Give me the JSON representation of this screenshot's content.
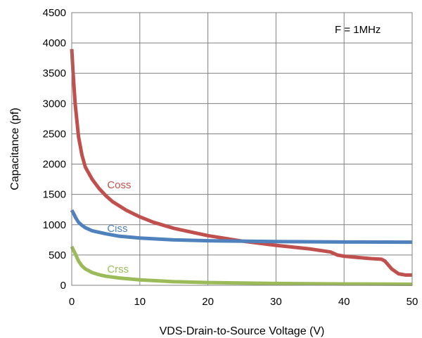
{
  "chart_data": {
    "type": "line",
    "xlabel": "VDS-Drain-to-Source Voltage (V)",
    "ylabel": "Capacitance (pf)",
    "xlim": [
      0,
      50
    ],
    "ylim": [
      0,
      4500
    ],
    "xticks": [
      0,
      10,
      20,
      30,
      40,
      50
    ],
    "yticks": [
      0,
      500,
      1000,
      1500,
      2000,
      2500,
      3000,
      3500,
      4000,
      4500
    ],
    "grid": true,
    "annotation": "F = 1MHz",
    "series": [
      {
        "name": "Coss",
        "color": "#c0504d",
        "x": [
          0,
          0.2,
          0.5,
          1,
          1.5,
          2,
          3,
          4,
          5,
          6,
          8,
          10,
          12,
          15,
          20,
          25,
          30,
          35,
          38,
          39,
          40,
          42,
          44,
          45.5,
          46,
          47,
          48,
          49,
          50
        ],
        "y": [
          3900,
          3500,
          3000,
          2450,
          2150,
          1950,
          1750,
          1600,
          1480,
          1380,
          1240,
          1130,
          1040,
          940,
          820,
          730,
          660,
          600,
          550,
          500,
          480,
          460,
          440,
          430,
          400,
          270,
          190,
          170,
          170
        ]
      },
      {
        "name": "Ciss",
        "color": "#4f81bd",
        "x": [
          0,
          0.3,
          0.6,
          1,
          1.5,
          2,
          3,
          5,
          7,
          10,
          15,
          20,
          30,
          40,
          50
        ],
        "y": [
          1240,
          1180,
          1110,
          1040,
          990,
          950,
          900,
          850,
          810,
          780,
          750,
          735,
          722,
          715,
          712
        ]
      },
      {
        "name": "Crss",
        "color": "#9bbb59",
        "x": [
          0,
          0.3,
          0.6,
          1,
          1.5,
          2,
          3,
          4,
          5,
          7,
          10,
          15,
          20,
          30,
          40,
          50
        ],
        "y": [
          640,
          570,
          500,
          400,
          320,
          270,
          210,
          175,
          150,
          120,
          90,
          60,
          45,
          30,
          22,
          18
        ]
      }
    ],
    "labels": [
      {
        "text": "Coss",
        "x": 5.2,
        "y": 1600
      },
      {
        "text": "Ciss",
        "x": 5.2,
        "y": 880
      },
      {
        "text": "Crss",
        "x": 5.2,
        "y": 210
      }
    ]
  }
}
